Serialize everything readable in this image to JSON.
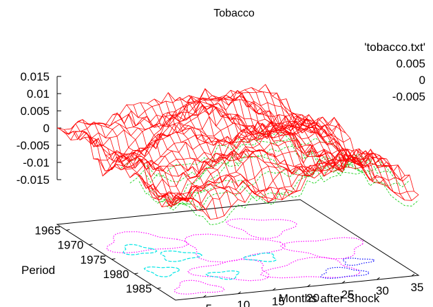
{
  "chart_data": {
    "type": "surface3d",
    "title": "Tobacco",
    "xlabel": "Months after Shock",
    "ylabel": "Period",
    "zlabel": "",
    "x_ticks": [
      5,
      10,
      15,
      20,
      25,
      30,
      35
    ],
    "y_ticks": [
      1965,
      1970,
      1975,
      1980,
      1985
    ],
    "z_ticks": [
      "0.015",
      "0.01",
      "0.005",
      "0",
      "-0.005",
      "-0.01",
      "-0.015"
    ],
    "xlim": [
      1,
      36
    ],
    "ylim": [
      1963,
      1989
    ],
    "zlim": [
      -0.015,
      0.015
    ],
    "grid": false,
    "legend_position": "top-right",
    "legend": {
      "title": "'tobacco.txt'",
      "items": [
        {
          "label": "0.005",
          "color": "#0000ff",
          "style": "dotted"
        },
        {
          "label": "0",
          "color": "#00e5e5",
          "style": "dashed"
        },
        {
          "label": "-0.005",
          "color": "#ff00ff",
          "style": "dotted"
        }
      ]
    },
    "surface": {
      "color_top": "#ff0000",
      "color_bottom": "#00cc00",
      "x_range": [
        1,
        36
      ],
      "y_range": [
        1963,
        1989
      ],
      "description_of_shape": [
        {
          "month": 1,
          "value_near": 0.0
        },
        {
          "month": 6,
          "value_near": -0.002
        },
        {
          "month": 12,
          "value_near": 0.004
        },
        {
          "month": 20,
          "value_near": 0.006
        },
        {
          "month": 28,
          "value_near": 0.003
        },
        {
          "month": 36,
          "value_near": -0.002
        }
      ]
    },
    "contour_levels": [
      0.005,
      0,
      -0.005
    ]
  }
}
